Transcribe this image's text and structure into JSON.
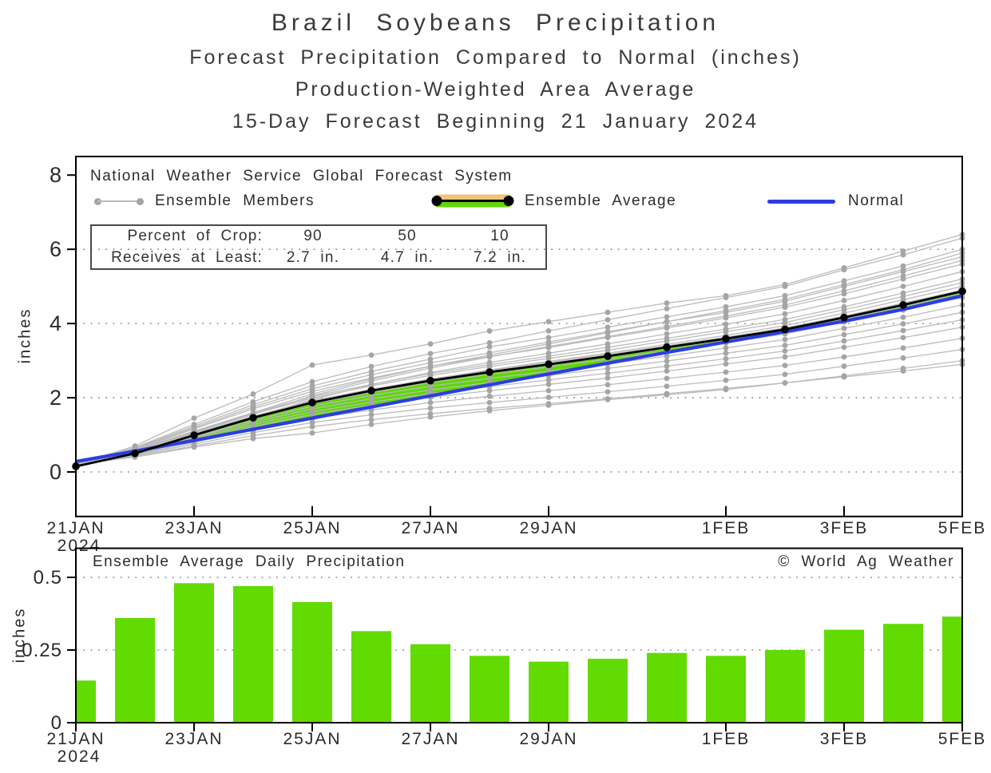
{
  "titles": {
    "line1": "Brazil Soybeans Precipitation",
    "line2": "Forecast Precipitation Compared to Normal (inches)",
    "line3": "Production-Weighted Area Average",
    "line4": "15-Day Forecast Beginning 21 January 2024"
  },
  "colors": {
    "axis": "#000000",
    "text": "#2b2b2b",
    "grid": "#8a8a8a",
    "member_line": "#bbbbbb",
    "member_dot": "#a5a5a5",
    "average": "#000000",
    "normal": "#2c3ee0",
    "band_green": "#5ed707",
    "band_orange": "#eec37f",
    "bar_green": "#61db02"
  },
  "chart_data": [
    {
      "type": "line",
      "note": "National Weather Service Global Forecast System",
      "ylabel": "inches",
      "legend": {
        "members": "Ensemble Members",
        "average": "Ensemble Average",
        "normal": "Normal"
      },
      "crop_table": {
        "rows": [
          [
            "Percent of Crop:",
            "90",
            "50",
            "10"
          ],
          [
            "Receives at Least:",
            "2.7 in.",
            "4.7 in.",
            "7.2 in."
          ]
        ]
      },
      "x_tick_labels": [
        "21JAN",
        "23JAN",
        "25JAN",
        "27JAN",
        "29JAN",
        "1FEB",
        "3FEB",
        "5FEB"
      ],
      "x_tick_days": [
        0,
        2,
        4,
        6,
        8,
        11,
        13,
        15
      ],
      "x_year": "2024",
      "yticks": [
        0,
        2,
        4,
        6,
        8
      ],
      "ygrid": [
        0,
        2,
        4,
        6
      ],
      "ylim": [
        -1.2,
        8.5
      ],
      "series": {
        "ensemble_average": [
          0.15,
          0.5,
          0.99,
          1.46,
          1.87,
          2.19,
          2.46,
          2.69,
          2.9,
          3.12,
          3.36,
          3.59,
          3.84,
          4.16,
          4.5,
          4.87
        ],
        "normal": [
          0.28,
          0.56,
          0.85,
          1.15,
          1.45,
          1.75,
          2.05,
          2.35,
          2.64,
          2.93,
          3.22,
          3.5,
          3.78,
          4.06,
          4.38,
          4.75
        ],
        "members": [
          [
            0.2,
            0.7,
            1.45,
            2.1,
            2.88,
            3.15,
            3.45,
            3.8,
            4.05,
            4.3,
            4.55,
            4.75,
            5.05,
            5.5,
            5.95,
            6.4
          ],
          [
            0.2,
            0.66,
            1.28,
            1.89,
            2.43,
            2.84,
            3.19,
            3.48,
            3.8,
            4.1,
            4.4,
            4.7,
            5.0,
            5.45,
            5.85,
            6.3
          ],
          [
            0.2,
            0.64,
            1.23,
            1.81,
            2.32,
            2.71,
            3.04,
            3.37,
            3.62,
            3.9,
            4.18,
            4.45,
            4.75,
            5.15,
            5.55,
            6.0
          ],
          [
            0.2,
            0.6,
            1.1,
            1.6,
            2.1,
            2.5,
            2.85,
            3.15,
            3.45,
            3.75,
            4.05,
            4.35,
            4.65,
            5.05,
            5.45,
            5.9
          ],
          [
            0.2,
            0.63,
            1.19,
            1.75,
            2.24,
            2.62,
            2.94,
            3.21,
            3.5,
            3.78,
            4.05,
            4.3,
            4.6,
            5.0,
            5.4,
            5.8
          ],
          [
            0.2,
            0.58,
            1.05,
            1.55,
            2.05,
            2.45,
            2.8,
            3.1,
            3.38,
            3.65,
            3.92,
            4.2,
            4.5,
            4.88,
            5.28,
            5.7
          ],
          [
            0.2,
            0.61,
            1.16,
            1.7,
            2.17,
            2.53,
            2.85,
            3.11,
            3.35,
            3.62,
            3.88,
            4.15,
            4.44,
            4.8,
            5.2,
            5.6
          ],
          [
            0.2,
            0.55,
            1.0,
            1.48,
            1.95,
            2.35,
            2.68,
            2.95,
            3.2,
            3.45,
            3.72,
            3.98,
            4.26,
            4.62,
            5.0,
            5.4
          ],
          [
            0.2,
            0.58,
            1.09,
            1.59,
            2.03,
            2.36,
            2.65,
            2.89,
            3.12,
            3.36,
            3.6,
            3.85,
            4.11,
            4.45,
            4.82,
            5.2
          ],
          [
            0.2,
            0.57,
            1.07,
            1.56,
            1.99,
            2.32,
            2.6,
            2.84,
            3.06,
            3.28,
            3.53,
            3.78,
            4.03,
            4.37,
            4.73,
            5.1
          ],
          [
            0.2,
            0.52,
            0.98,
            1.45,
            1.9,
            2.22,
            2.5,
            2.75,
            2.98,
            3.2,
            3.44,
            3.68,
            3.94,
            4.28,
            4.64,
            5.0
          ],
          [
            0.2,
            0.56,
            1.03,
            1.5,
            1.92,
            2.23,
            2.5,
            2.73,
            2.95,
            3.17,
            3.4,
            3.63,
            3.88,
            4.2,
            4.55,
            4.9
          ],
          [
            0.2,
            0.55,
            1.01,
            1.47,
            1.88,
            2.19,
            2.45,
            2.68,
            2.88,
            3.1,
            3.33,
            3.56,
            3.8,
            4.12,
            4.45,
            4.8
          ],
          [
            0.2,
            0.54,
            1.0,
            1.45,
            1.84,
            2.14,
            2.41,
            2.63,
            2.83,
            3.04,
            3.26,
            3.48,
            3.72,
            4.04,
            4.36,
            4.7
          ],
          [
            0.2,
            0.53,
            0.96,
            1.39,
            1.77,
            2.06,
            2.31,
            2.52,
            2.71,
            2.91,
            3.12,
            3.34,
            3.57,
            3.87,
            4.17,
            4.5
          ],
          [
            0.2,
            0.51,
            0.93,
            1.34,
            1.7,
            1.97,
            2.21,
            2.41,
            2.6,
            2.79,
            2.99,
            3.2,
            3.41,
            3.7,
            3.99,
            4.3
          ],
          [
            0.2,
            0.5,
            0.89,
            1.28,
            1.62,
            1.88,
            2.11,
            2.3,
            2.48,
            2.66,
            2.85,
            3.05,
            3.26,
            3.53,
            3.81,
            4.1
          ],
          [
            0.2,
            0.48,
            0.85,
            1.22,
            1.55,
            1.8,
            2.01,
            2.19,
            2.36,
            2.53,
            2.72,
            2.91,
            3.1,
            3.36,
            3.62,
            3.9
          ],
          [
            0.2,
            0.46,
            0.8,
            1.14,
            1.44,
            1.67,
            1.87,
            2.04,
            2.19,
            2.35,
            2.52,
            2.69,
            2.87,
            3.1,
            3.34,
            3.6
          ],
          [
            0.2,
            0.44,
            0.75,
            1.06,
            1.33,
            1.54,
            1.72,
            1.87,
            2.01,
            2.16,
            2.31,
            2.47,
            2.63,
            2.85,
            3.07,
            3.3
          ],
          [
            0.2,
            0.41,
            0.7,
            0.98,
            1.22,
            1.41,
            1.57,
            1.71,
            1.84,
            1.97,
            2.11,
            2.25,
            2.4,
            2.59,
            2.79,
            3.0
          ],
          [
            0.2,
            0.4,
            0.67,
            0.9,
            1.05,
            1.28,
            1.48,
            1.65,
            1.8,
            1.95,
            2.08,
            2.22,
            2.4,
            2.56,
            2.72,
            2.9
          ]
        ]
      }
    },
    {
      "type": "bar",
      "title": "Ensemble Average Daily Precipitation",
      "credit": "© World Ag Weather",
      "ylabel": "inches",
      "yticks": [
        0,
        0.25,
        0.5
      ],
      "ytick_labels": [
        "0",
        "0.25",
        "0.5"
      ],
      "ygrid": [
        0.25,
        0.5
      ],
      "ylim": [
        0,
        0.6
      ],
      "values": [
        0.145,
        0.36,
        0.48,
        0.47,
        0.415,
        0.315,
        0.27,
        0.23,
        0.21,
        0.22,
        0.24,
        0.23,
        0.25,
        0.32,
        0.34,
        0.365
      ],
      "x_tick_labels": [
        "21JAN",
        "23JAN",
        "25JAN",
        "27JAN",
        "29JAN",
        "1FEB",
        "3FEB",
        "5FEB"
      ],
      "x_tick_days": [
        0,
        2,
        4,
        6,
        8,
        11,
        13,
        15
      ],
      "x_year": "2024"
    }
  ]
}
